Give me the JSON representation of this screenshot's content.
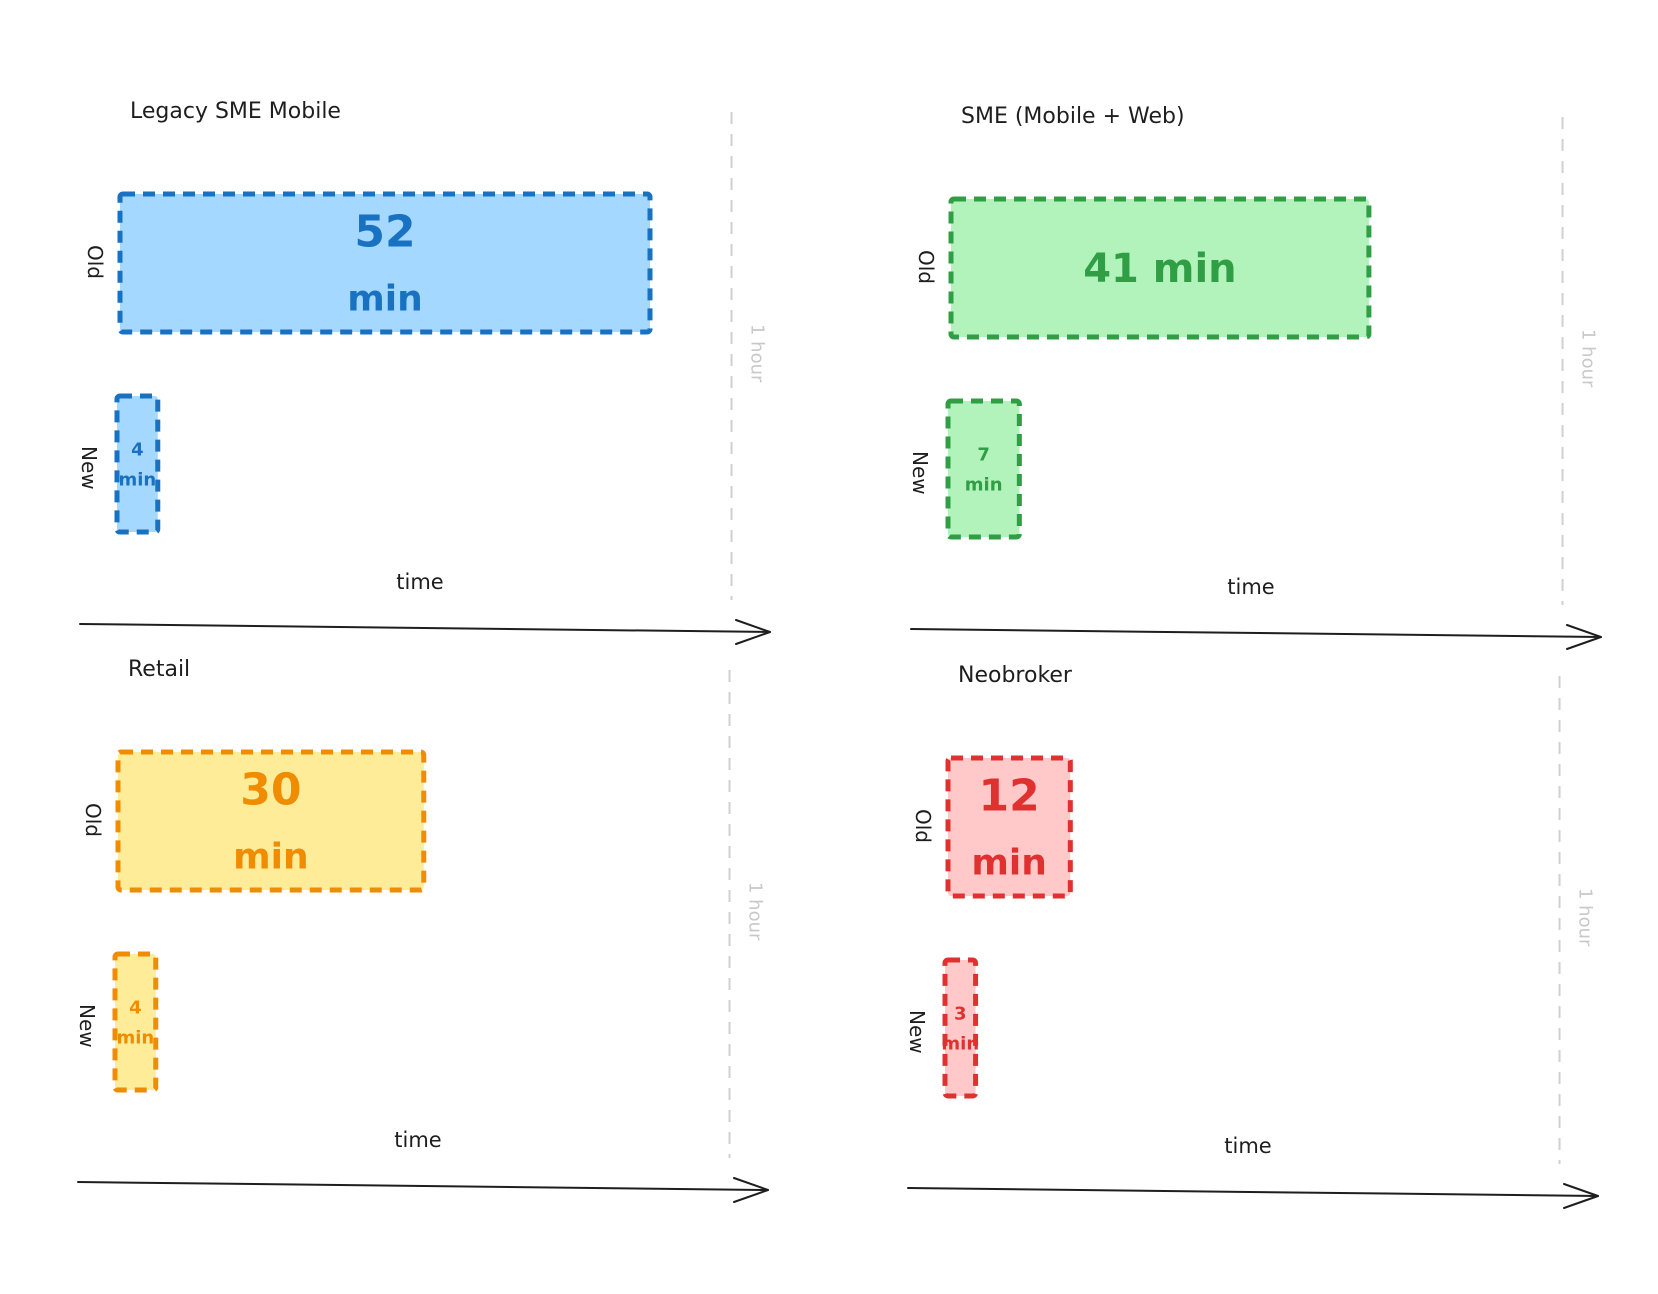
{
  "chart_data": [
    {
      "type": "bar",
      "orientation": "horizontal",
      "title": "Legacy SME Mobile",
      "xlabel": "time",
      "x_marker_label": "1 hour",
      "xlim": [
        0,
        60
      ],
      "categories": [
        "Old",
        "New"
      ],
      "values": [
        52,
        4
      ],
      "value_labels": [
        [
          "52",
          "min"
        ],
        [
          "4",
          "min"
        ]
      ],
      "stroke_color": "#1971c2",
      "fill_color": "#a5d8ff"
    },
    {
      "type": "bar",
      "orientation": "horizontal",
      "title": "SME (Mobile + Web)",
      "xlabel": "time",
      "x_marker_label": "1 hour",
      "xlim": [
        0,
        60
      ],
      "categories": [
        "Old",
        "New"
      ],
      "values": [
        41,
        7
      ],
      "value_labels": [
        [
          "41 min"
        ],
        [
          "7",
          "min"
        ]
      ],
      "stroke_color": "#2f9e44",
      "fill_color": "#b2f2bb"
    },
    {
      "type": "bar",
      "orientation": "horizontal",
      "title": "Retail",
      "xlabel": "time",
      "x_marker_label": "1 hour",
      "xlim": [
        0,
        60
      ],
      "categories": [
        "Old",
        "New"
      ],
      "values": [
        30,
        4
      ],
      "value_labels": [
        [
          "30",
          "min"
        ],
        [
          "4",
          "min"
        ]
      ],
      "stroke_color": "#f08c00",
      "fill_color": "#ffec99"
    },
    {
      "type": "bar",
      "orientation": "horizontal",
      "title": "Neobroker",
      "xlabel": "time",
      "x_marker_label": "1 hour",
      "xlim": [
        0,
        60
      ],
      "categories": [
        "Old",
        "New"
      ],
      "values": [
        12,
        3
      ],
      "value_labels": [
        [
          "12",
          "min"
        ],
        [
          "3",
          "min"
        ]
      ],
      "stroke_color": "#e03131",
      "fill_color": "#ffc9c9"
    }
  ]
}
